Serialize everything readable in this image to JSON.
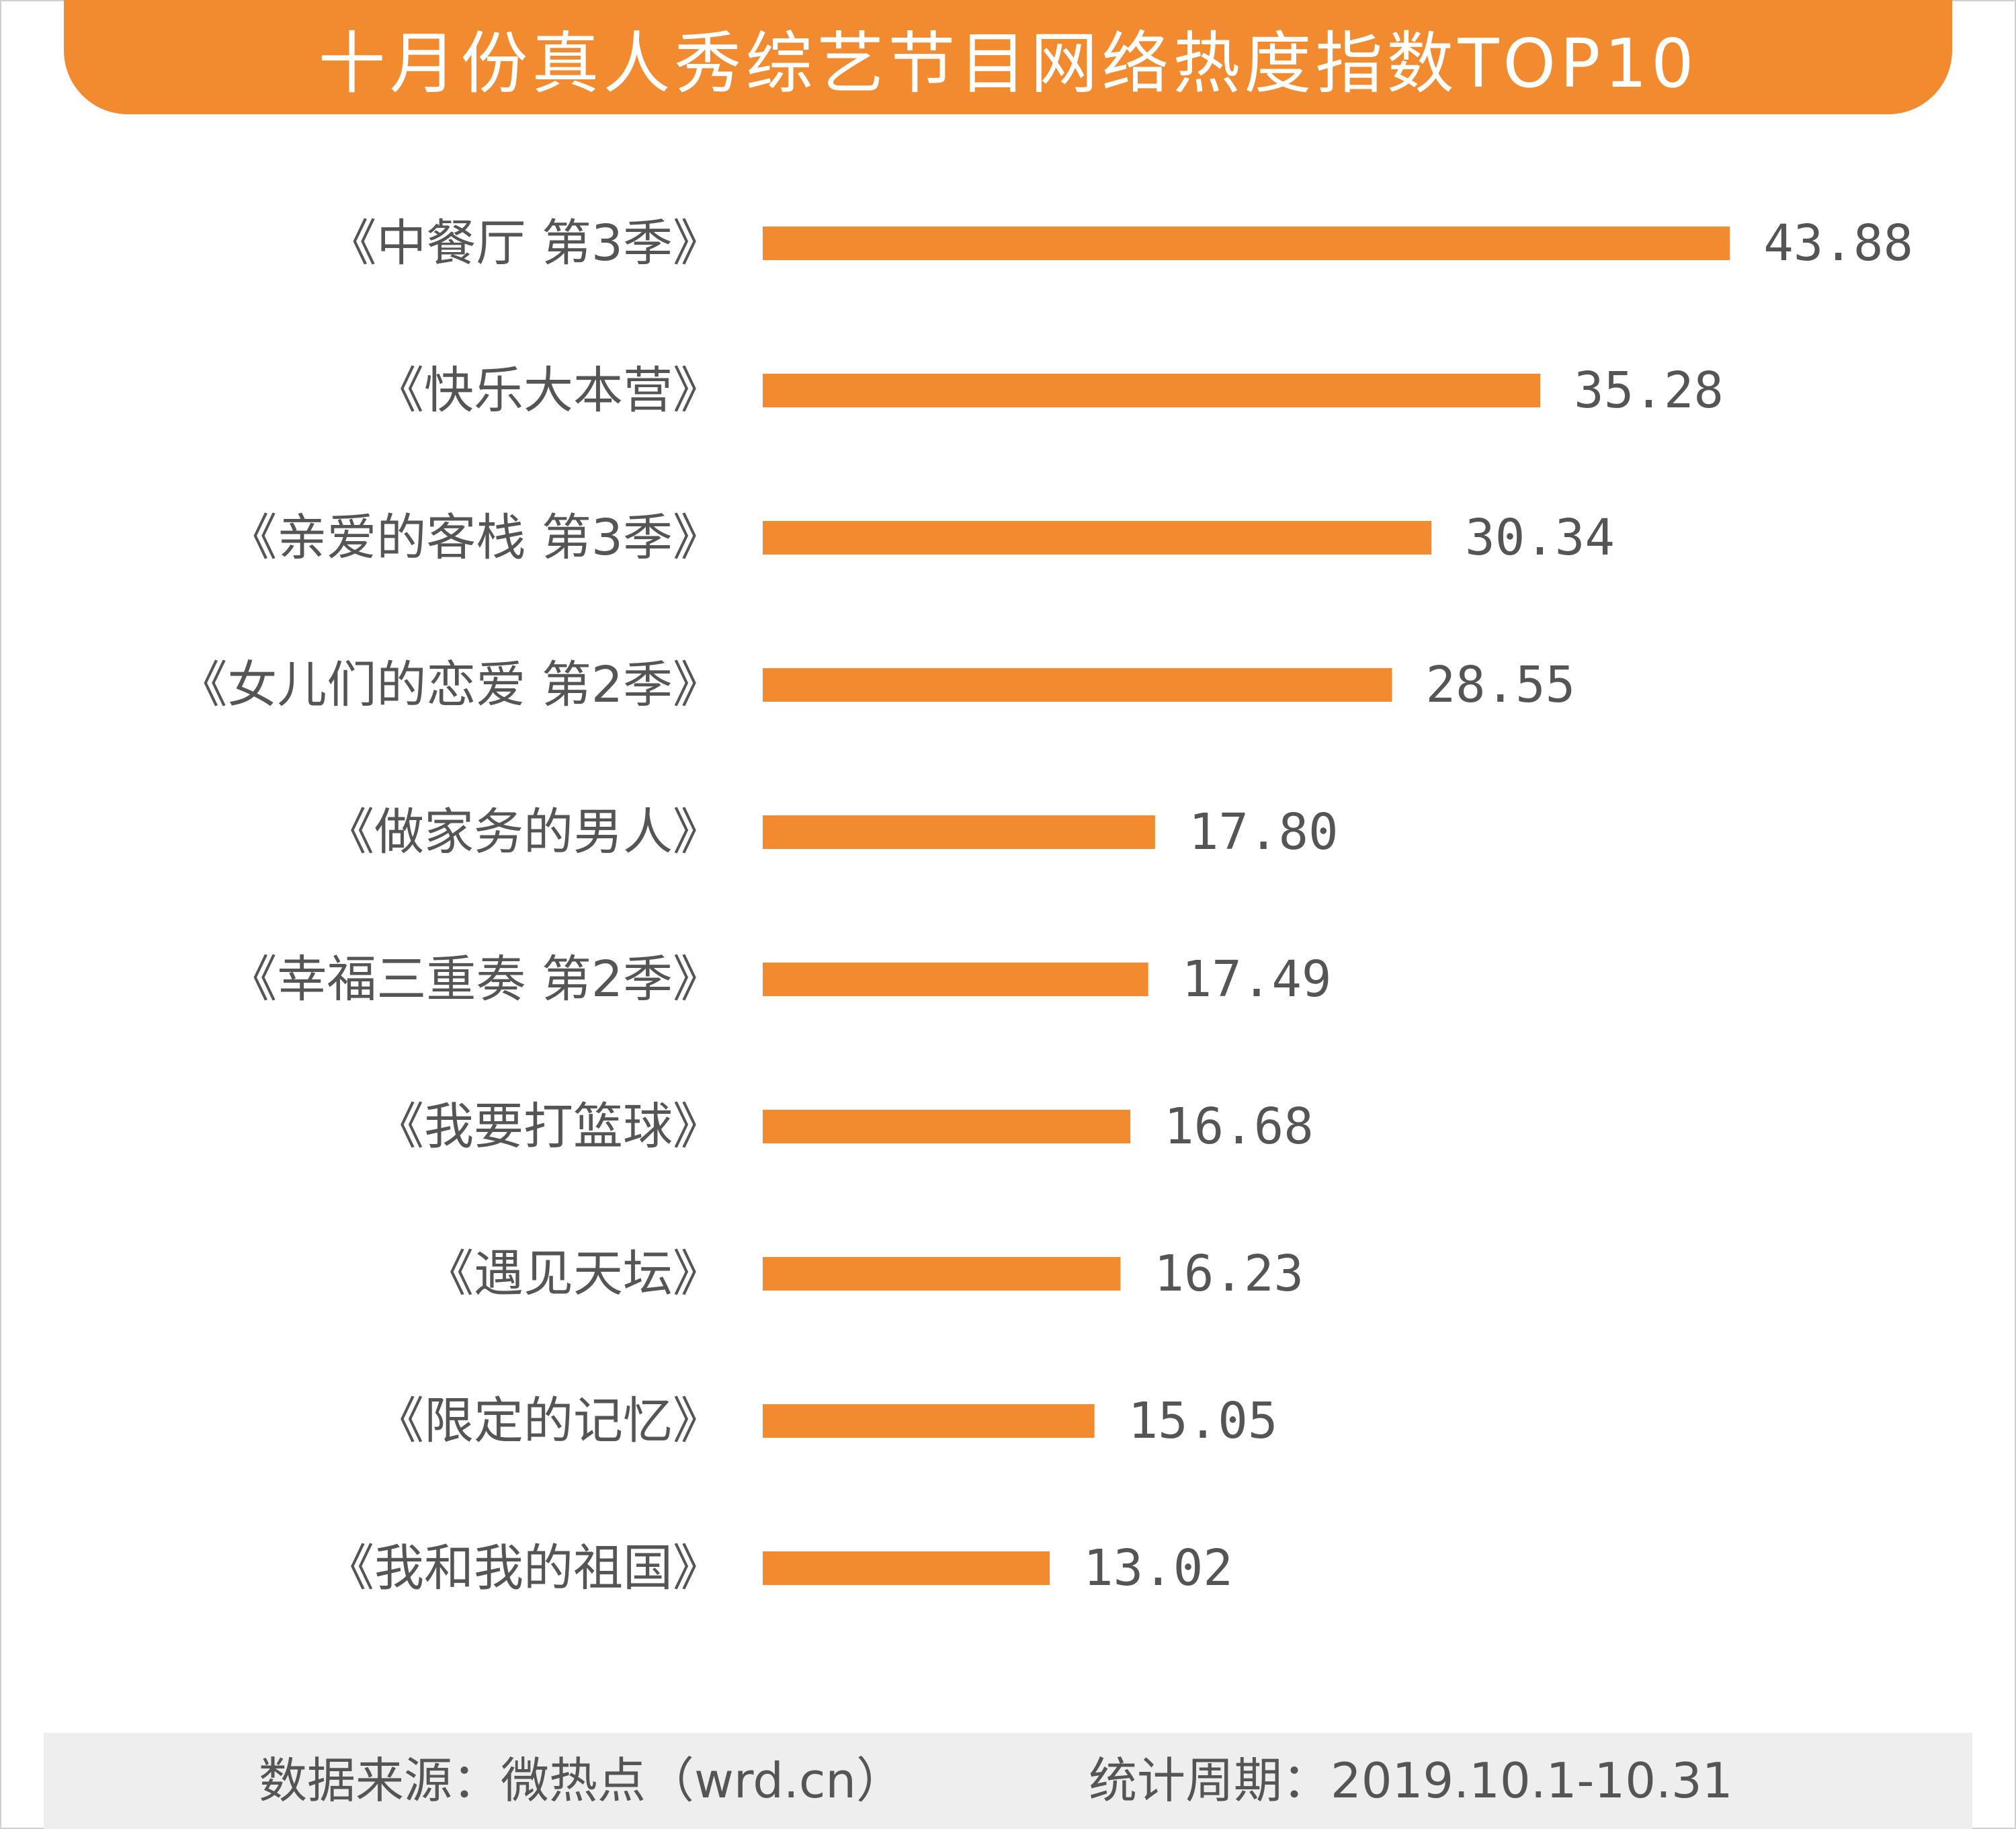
{
  "chart_data": {
    "type": "bar",
    "orientation": "horizontal",
    "title": "十月份真人秀综艺节目网络热度指数TOP10",
    "categories": [
      "《中餐厅 第3季》",
      "《快乐大本营》",
      "《亲爱的客栈 第3季》",
      "《女儿们的恋爱 第2季》",
      "《做家务的男人》",
      "《幸福三重奏 第2季》",
      "《我要打篮球》",
      "《遇见天坛》",
      "《限定的记忆》",
      "《我和我的祖国》"
    ],
    "values": [
      43.88,
      35.28,
      30.34,
      28.55,
      17.8,
      17.49,
      16.68,
      16.23,
      15.05,
      13.02
    ],
    "value_labels": [
      "43.88",
      "35.28",
      "30.34",
      "28.55",
      "17.80",
      "17.49",
      "16.68",
      "16.23",
      "15.05",
      "13.02"
    ],
    "bar_color": "#f28b30",
    "xlabel": "",
    "ylabel": "",
    "grid": false,
    "legend": "none"
  },
  "footer": {
    "source": "数据来源：微热点（wrd.cn）",
    "period": "统计周期：2019.10.1-10.31"
  },
  "colors": {
    "accent": "#f28b30",
    "label_text": "#555555"
  }
}
